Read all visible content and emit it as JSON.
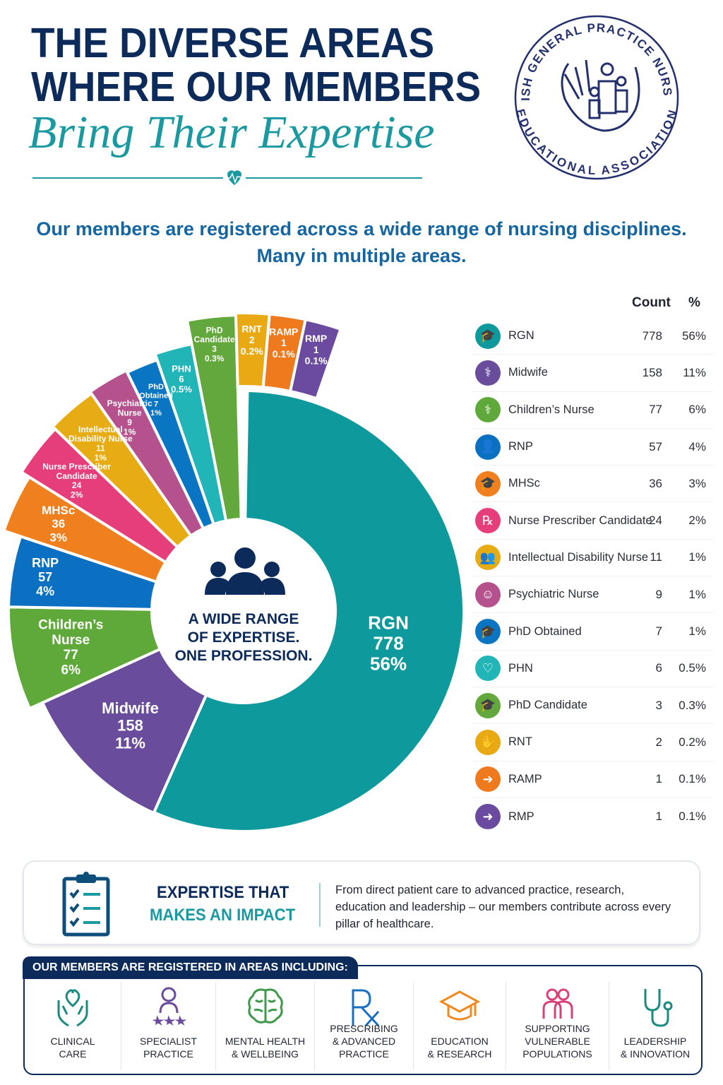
{
  "header": {
    "title_line1": "THE DIVERSE AREAS",
    "title_line2": "WHERE OUR MEMBERS",
    "script_line": "Bring Their Expertise",
    "logo": {
      "top_text": "IRISH GENERAL PRACTICE NURSES",
      "bottom_text": "EDUCATIONAL ASSOCIATION"
    }
  },
  "subtitle": {
    "line1": "Our members are registered across a wide range of nursing disciplines.",
    "line2": "Many in multiple areas."
  },
  "center": {
    "line1": "A WIDE RANGE",
    "line2": "OF EXPERTISE.",
    "line3": "ONE PROFESSION.",
    "icon": "people-group-icon"
  },
  "table": {
    "count_header": "Count",
    "pct_header": "%"
  },
  "chart_data": {
    "type": "pie",
    "variant": "donut",
    "title": "",
    "legend": "right (table)",
    "series": [
      {
        "name": "RGN",
        "label_lines": [
          "RGN"
        ],
        "value": 778,
        "pct": "56%",
        "color": "#0e9a9c",
        "icon": "graduation-cap-icon"
      },
      {
        "name": "Midwife",
        "label_lines": [
          "Midwife"
        ],
        "value": 158,
        "pct": "11%",
        "color": "#6a4c9c",
        "icon": "nurse-icon"
      },
      {
        "name": "Children’s Nurse",
        "label_lines": [
          "Children’s",
          "Nurse"
        ],
        "value": 77,
        "pct": "6%",
        "color": "#5fa83a",
        "icon": "nurse-icon"
      },
      {
        "name": "RNP",
        "label_lines": [
          "RNP"
        ],
        "value": 57,
        "pct": "4%",
        "color": "#0b6fc2",
        "icon": "person-icon"
      },
      {
        "name": "MHSc",
        "label_lines": [
          "MHSc"
        ],
        "value": 36,
        "pct": "3%",
        "color": "#f07f1e",
        "icon": "graduation-cap-icon"
      },
      {
        "name": "Nurse Prescriber Candidate",
        "label_lines": [
          "Nurse Prescriber",
          "Candidate"
        ],
        "value": 24,
        "pct": "2%",
        "color": "#e63e7a",
        "icon": "prescription-icon"
      },
      {
        "name": "Intellectual Disability Nurse",
        "label_lines": [
          "Intellectual",
          "Disability Nurse"
        ],
        "value": 11,
        "pct": "1%",
        "color": "#e7ab14",
        "icon": "people-icon"
      },
      {
        "name": "Psychiatric Nurse",
        "label_lines": [
          "Psychiatric",
          "Nurse"
        ],
        "value": 9,
        "pct": "1%",
        "color": "#b5528e",
        "icon": "head-icon"
      },
      {
        "name": "PhD Obtained",
        "label_lines": [
          "PhD",
          "Obtained"
        ],
        "value": 7,
        "pct": "1%",
        "color": "#0a75c2",
        "icon": "graduation-cap-icon"
      },
      {
        "name": "PHN",
        "label_lines": [
          "PHN"
        ],
        "value": 6,
        "pct": "0.5%",
        "color": "#21b5b8",
        "icon": "heart-icon"
      },
      {
        "name": "PhD Candidate",
        "label_lines": [
          "PhD",
          "Candidate"
        ],
        "value": 3,
        "pct": "0.3%",
        "color": "#63a83c",
        "icon": "graduation-cap-icon"
      },
      {
        "name": "RNT",
        "label_lines": [
          "RNT"
        ],
        "value": 2,
        "pct": "0.2%",
        "color": "#e9a912",
        "icon": "hands-icon"
      },
      {
        "name": "RAMP",
        "label_lines": [
          "RAMP"
        ],
        "value": 1,
        "pct": "0.1%",
        "color": "#ef7a1e",
        "icon": "arrow-right-icon"
      },
      {
        "name": "RMP",
        "label_lines": [
          "RMP"
        ],
        "value": 1,
        "pct": "0.1%",
        "color": "#6b4ba0",
        "icon": "arrow-right-icon"
      }
    ]
  },
  "impact": {
    "heading1": "EXPERTISE THAT",
    "heading2": "MAKES AN IMPACT",
    "text": "From direct patient care to advanced practice, research, education and leadership – our members contribute across every pillar of healthcare.",
    "icon": "clipboard-checklist-icon"
  },
  "areas": {
    "heading": "OUR MEMBERS ARE REGISTERED IN AREAS INCLUDING:",
    "items": [
      {
        "line1": "CLINICAL",
        "line2": "CARE",
        "icon": "heart-hands-icon",
        "color": "#1a8a7e"
      },
      {
        "line1": "SPECIALIST",
        "line2": "PRACTICE",
        "icon": "nurse-stars-icon",
        "color": "#6a4c9c"
      },
      {
        "line1": "MENTAL HEALTH",
        "line2": "& WELLBEING",
        "icon": "brain-icon",
        "color": "#3e9a4a"
      },
      {
        "line1": "PRESCRIBING",
        "line2": "& ADVANCED",
        "line3": "PRACTICE",
        "icon": "rx-icon",
        "color": "#1a6fc2"
      },
      {
        "line1": "EDUCATION",
        "line2": "& RESEARCH",
        "icon": "graduation-cap-icon",
        "color": "#f08a1e"
      },
      {
        "line1": "SUPPORTING",
        "line2": "VULNERABLE",
        "line3": "POPULATIONS",
        "icon": "people-icon",
        "color": "#d8417a"
      },
      {
        "line1": "LEADERSHIP",
        "line2": "& INNOVATION",
        "icon": "stethoscope-icon",
        "color": "#1a8a7e"
      }
    ]
  }
}
